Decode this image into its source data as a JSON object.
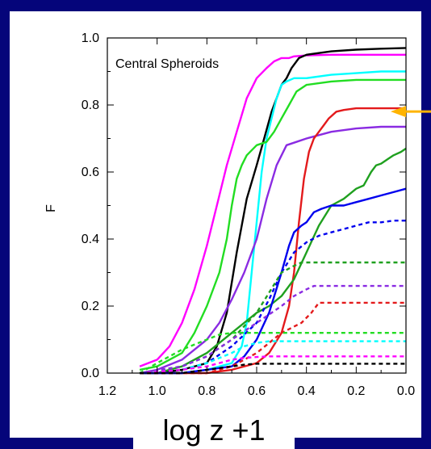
{
  "chart_data": {
    "type": "line",
    "title": "",
    "annotation": "Central Spheroids",
    "xlabel": "log z +1",
    "ylabel": "F",
    "xlim": [
      1.2,
      0.0
    ],
    "ylim": [
      0.0,
      1.0
    ],
    "x_reversed": true,
    "xticks": [
      "1.2",
      "1.0",
      "0.8",
      "0.6",
      "0.4",
      "0.2",
      "0.0"
    ],
    "yticks": [
      "0.0",
      "0.2",
      "0.4",
      "0.6",
      "0.8",
      "1.0"
    ],
    "arrow_color": "#ffb400",
    "arrow_at_y": 0.79,
    "series": [
      {
        "color": "#ff00ff",
        "style": "solid",
        "x": [
          1.07,
          1.0,
          0.95,
          0.9,
          0.85,
          0.8,
          0.76,
          0.72,
          0.68,
          0.64,
          0.6,
          0.56,
          0.53,
          0.5,
          0.47,
          0.45,
          0.4,
          0.3,
          0.2,
          0.1,
          0.0
        ],
        "y": [
          0.02,
          0.04,
          0.08,
          0.15,
          0.25,
          0.38,
          0.5,
          0.62,
          0.72,
          0.82,
          0.88,
          0.91,
          0.93,
          0.94,
          0.94,
          0.945,
          0.948,
          0.95,
          0.95,
          0.95,
          0.95
        ]
      },
      {
        "color": "#000000",
        "style": "solid",
        "x": [
          1.07,
          1.0,
          0.9,
          0.8,
          0.76,
          0.72,
          0.68,
          0.64,
          0.6,
          0.57,
          0.54,
          0.52,
          0.5,
          0.48,
          0.46,
          0.43,
          0.4,
          0.3,
          0.2,
          0.1,
          0.0
        ],
        "y": [
          0.0,
          0.0,
          0.01,
          0.03,
          0.08,
          0.18,
          0.36,
          0.52,
          0.62,
          0.7,
          0.78,
          0.82,
          0.86,
          0.88,
          0.91,
          0.94,
          0.95,
          0.96,
          0.965,
          0.968,
          0.97
        ]
      },
      {
        "color": "#00ffff",
        "style": "solid",
        "x": [
          1.07,
          0.9,
          0.8,
          0.7,
          0.66,
          0.64,
          0.62,
          0.6,
          0.58,
          0.56,
          0.54,
          0.52,
          0.5,
          0.48,
          0.45,
          0.4,
          0.3,
          0.2,
          0.1,
          0.0
        ],
        "y": [
          0.0,
          0.0,
          0.01,
          0.03,
          0.08,
          0.15,
          0.3,
          0.45,
          0.6,
          0.7,
          0.76,
          0.82,
          0.86,
          0.87,
          0.88,
          0.88,
          0.89,
          0.895,
          0.9,
          0.9
        ]
      },
      {
        "color": "#22dd22",
        "style": "solid",
        "x": [
          1.07,
          1.0,
          0.9,
          0.85,
          0.8,
          0.75,
          0.72,
          0.7,
          0.68,
          0.66,
          0.64,
          0.6,
          0.56,
          0.53,
          0.5,
          0.47,
          0.44,
          0.4,
          0.3,
          0.2,
          0.1,
          0.0
        ],
        "y": [
          0.01,
          0.02,
          0.06,
          0.12,
          0.2,
          0.3,
          0.4,
          0.5,
          0.58,
          0.62,
          0.65,
          0.68,
          0.69,
          0.72,
          0.76,
          0.8,
          0.84,
          0.86,
          0.87,
          0.875,
          0.875,
          0.875
        ]
      },
      {
        "color": "#8a2be2",
        "style": "solid",
        "x": [
          1.07,
          1.0,
          0.9,
          0.8,
          0.75,
          0.7,
          0.65,
          0.6,
          0.56,
          0.52,
          0.48,
          0.44,
          0.4,
          0.3,
          0.2,
          0.1,
          0.0
        ],
        "y": [
          0.0,
          0.01,
          0.04,
          0.1,
          0.15,
          0.22,
          0.3,
          0.4,
          0.52,
          0.62,
          0.68,
          0.69,
          0.7,
          0.72,
          0.73,
          0.735,
          0.735
        ]
      },
      {
        "color": "#e31a1c",
        "style": "solid",
        "x": [
          1.07,
          0.8,
          0.7,
          0.6,
          0.55,
          0.5,
          0.47,
          0.45,
          0.43,
          0.41,
          0.39,
          0.37,
          0.35,
          0.33,
          0.31,
          0.28,
          0.25,
          0.2,
          0.15,
          0.1,
          0.05,
          0.0
        ],
        "y": [
          0.0,
          0.0,
          0.01,
          0.03,
          0.06,
          0.12,
          0.2,
          0.3,
          0.45,
          0.58,
          0.66,
          0.7,
          0.72,
          0.74,
          0.76,
          0.78,
          0.785,
          0.79,
          0.79,
          0.79,
          0.79,
          0.79
        ]
      },
      {
        "color": "#1fa01f",
        "style": "solid",
        "x": [
          1.07,
          1.0,
          0.9,
          0.8,
          0.7,
          0.6,
          0.55,
          0.5,
          0.45,
          0.4,
          0.35,
          0.3,
          0.25,
          0.2,
          0.17,
          0.14,
          0.12,
          0.1,
          0.07,
          0.05,
          0.02,
          0.0
        ],
        "y": [
          0.0,
          0.0,
          0.02,
          0.06,
          0.12,
          0.18,
          0.2,
          0.23,
          0.28,
          0.36,
          0.44,
          0.5,
          0.52,
          0.55,
          0.56,
          0.6,
          0.62,
          0.625,
          0.64,
          0.65,
          0.66,
          0.67
        ]
      },
      {
        "color": "#0000ee",
        "style": "solid",
        "x": [
          1.07,
          0.9,
          0.8,
          0.7,
          0.65,
          0.6,
          0.55,
          0.5,
          0.47,
          0.45,
          0.42,
          0.4,
          0.37,
          0.34,
          0.3,
          0.25,
          0.2,
          0.15,
          0.1,
          0.05,
          0.0
        ],
        "y": [
          0.0,
          0.0,
          0.01,
          0.02,
          0.05,
          0.1,
          0.18,
          0.3,
          0.38,
          0.42,
          0.44,
          0.45,
          0.48,
          0.49,
          0.5,
          0.5,
          0.51,
          0.52,
          0.53,
          0.54,
          0.55
        ]
      },
      {
        "color": "#0000ee",
        "style": "dashed",
        "x": [
          1.07,
          0.9,
          0.8,
          0.7,
          0.6,
          0.55,
          0.5,
          0.45,
          0.4,
          0.35,
          0.3,
          0.25,
          0.2,
          0.15,
          0.1,
          0.05,
          0.0
        ],
        "y": [
          0.0,
          0.01,
          0.03,
          0.08,
          0.15,
          0.22,
          0.3,
          0.36,
          0.39,
          0.41,
          0.42,
          0.43,
          0.44,
          0.45,
          0.45,
          0.455,
          0.455
        ]
      },
      {
        "color": "#1fa01f",
        "style": "dashed",
        "x": [
          1.07,
          0.9,
          0.8,
          0.7,
          0.6,
          0.55,
          0.5,
          0.45,
          0.42,
          0.4,
          0.38,
          0.3,
          0.2,
          0.1,
          0.0
        ],
        "y": [
          0.0,
          0.02,
          0.05,
          0.1,
          0.18,
          0.24,
          0.3,
          0.32,
          0.33,
          0.33,
          0.33,
          0.33,
          0.33,
          0.33,
          0.33
        ]
      },
      {
        "color": "#8a2be2",
        "style": "dashed",
        "x": [
          1.07,
          0.9,
          0.8,
          0.7,
          0.6,
          0.5,
          0.45,
          0.4,
          0.37,
          0.35,
          0.3,
          0.2,
          0.1,
          0.0
        ],
        "y": [
          0.0,
          0.02,
          0.05,
          0.1,
          0.15,
          0.2,
          0.23,
          0.25,
          0.26,
          0.26,
          0.26,
          0.26,
          0.26,
          0.26
        ]
      },
      {
        "color": "#e31a1c",
        "style": "dashed",
        "x": [
          1.07,
          0.8,
          0.7,
          0.6,
          0.5,
          0.42,
          0.38,
          0.36,
          0.35,
          0.3,
          0.2,
          0.1,
          0.0
        ],
        "y": [
          0.0,
          0.0,
          0.02,
          0.06,
          0.12,
          0.15,
          0.18,
          0.2,
          0.21,
          0.21,
          0.21,
          0.21,
          0.21
        ]
      },
      {
        "color": "#22dd22",
        "style": "dashed",
        "x": [
          1.07,
          1.0,
          0.9,
          0.8,
          0.75,
          0.7,
          0.65,
          0.6,
          0.5,
          0.4,
          0.3,
          0.2,
          0.1,
          0.0
        ],
        "y": [
          0.0,
          0.03,
          0.07,
          0.1,
          0.115,
          0.12,
          0.12,
          0.12,
          0.12,
          0.12,
          0.12,
          0.12,
          0.12,
          0.12
        ]
      },
      {
        "color": "#00ffff",
        "style": "dashed",
        "x": [
          1.07,
          0.9,
          0.8,
          0.7,
          0.65,
          0.6,
          0.55,
          0.5,
          0.4,
          0.3,
          0.2,
          0.1,
          0.0
        ],
        "y": [
          0.0,
          0.01,
          0.03,
          0.06,
          0.08,
          0.09,
          0.095,
          0.095,
          0.095,
          0.095,
          0.095,
          0.095,
          0.095
        ]
      },
      {
        "color": "#ff00ff",
        "style": "dashed",
        "x": [
          1.07,
          0.9,
          0.8,
          0.75,
          0.7,
          0.65,
          0.6,
          0.55,
          0.5,
          0.4,
          0.3,
          0.2,
          0.1,
          0.0
        ],
        "y": [
          0.0,
          0.01,
          0.02,
          0.03,
          0.04,
          0.045,
          0.048,
          0.05,
          0.05,
          0.05,
          0.05,
          0.05,
          0.05,
          0.05
        ]
      },
      {
        "color": "#000000",
        "style": "dashed",
        "x": [
          1.07,
          0.9,
          0.8,
          0.75,
          0.7,
          0.65,
          0.6,
          0.5,
          0.4,
          0.3,
          0.2,
          0.1,
          0.0
        ],
        "y": [
          0.0,
          0.0,
          0.01,
          0.015,
          0.02,
          0.025,
          0.028,
          0.028,
          0.028,
          0.028,
          0.028,
          0.028,
          0.028
        ]
      }
    ]
  }
}
